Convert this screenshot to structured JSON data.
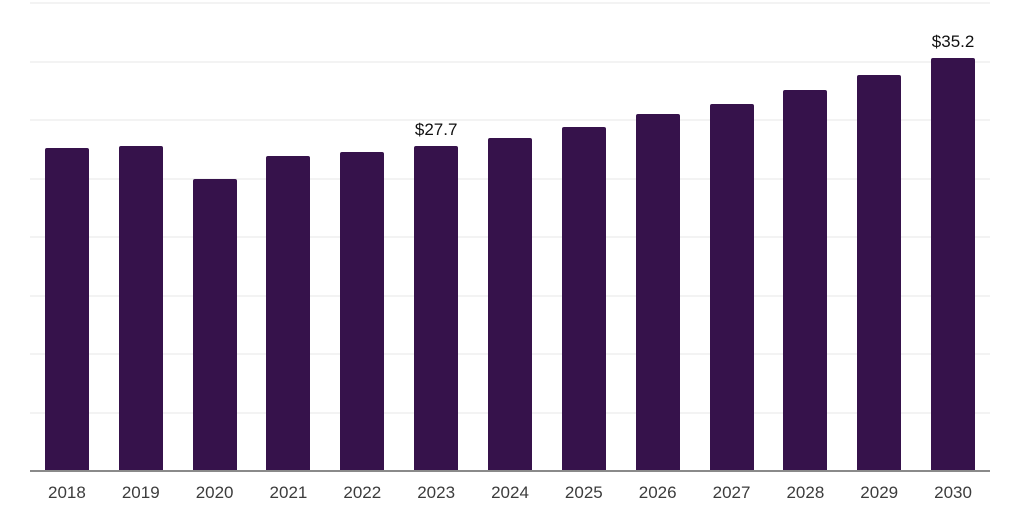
{
  "chart": {
    "background_color": "#ffffff",
    "bar_color": "#36124B",
    "gridline_color": "#f3f3f3",
    "axis_line_color": "#8a8a8a",
    "x_label_color": "#3c3c3c",
    "data_label_color": "#111111"
  },
  "chart_data": {
    "type": "bar",
    "title": "",
    "xlabel": "",
    "ylabel": "",
    "categories": [
      "2018",
      "2019",
      "2020",
      "2021",
      "2022",
      "2023",
      "2024",
      "2025",
      "2026",
      "2027",
      "2028",
      "2029",
      "2030"
    ],
    "values": [
      27.5,
      27.7,
      24.9,
      26.8,
      27.2,
      27.7,
      28.4,
      29.3,
      30.4,
      31.3,
      32.5,
      33.8,
      35.2
    ],
    "data_labels": [
      "",
      "",
      "",
      "",
      "",
      "$27.7",
      "",
      "",
      "",
      "",
      "",
      "",
      "$35.2"
    ],
    "ylim": [
      0,
      40
    ],
    "gridline_step": 5,
    "grid": true,
    "legend": false,
    "y_tick_labels_visible": false
  }
}
